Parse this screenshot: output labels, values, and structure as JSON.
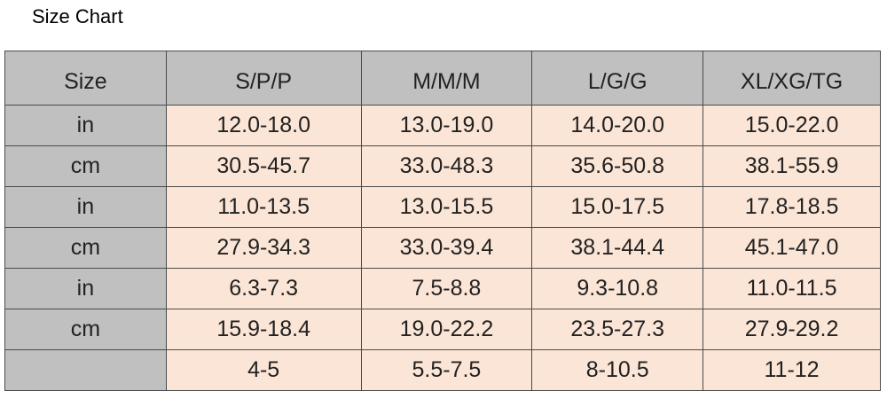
{
  "title": "Size Chart",
  "table": {
    "header": [
      "Size",
      "S/P/P",
      "M/M/M",
      "L/G/G",
      "XL/XG/TG"
    ],
    "rows": [
      [
        "in",
        "12.0-18.0",
        "13.0-19.0",
        "14.0-20.0",
        "15.0-22.0"
      ],
      [
        "cm",
        "30.5-45.7",
        "33.0-48.3",
        "35.6-50.8",
        "38.1-55.9"
      ],
      [
        "in",
        "11.0-13.5",
        "13.0-15.5",
        "15.0-17.5",
        "17.8-18.5"
      ],
      [
        "cm",
        "27.9-34.3",
        "33.0-39.4",
        "38.1-44.4",
        "45.1-47.0"
      ],
      [
        "in",
        "6.3-7.3",
        "7.5-8.8",
        "9.3-10.8",
        "11.0-11.5"
      ],
      [
        "cm",
        "15.9-18.4",
        "19.0-22.2",
        "23.5-27.3",
        "27.9-29.2"
      ],
      [
        null,
        "4-5",
        "5.5-7.5",
        "8-10.5",
        "11-12"
      ]
    ]
  }
}
